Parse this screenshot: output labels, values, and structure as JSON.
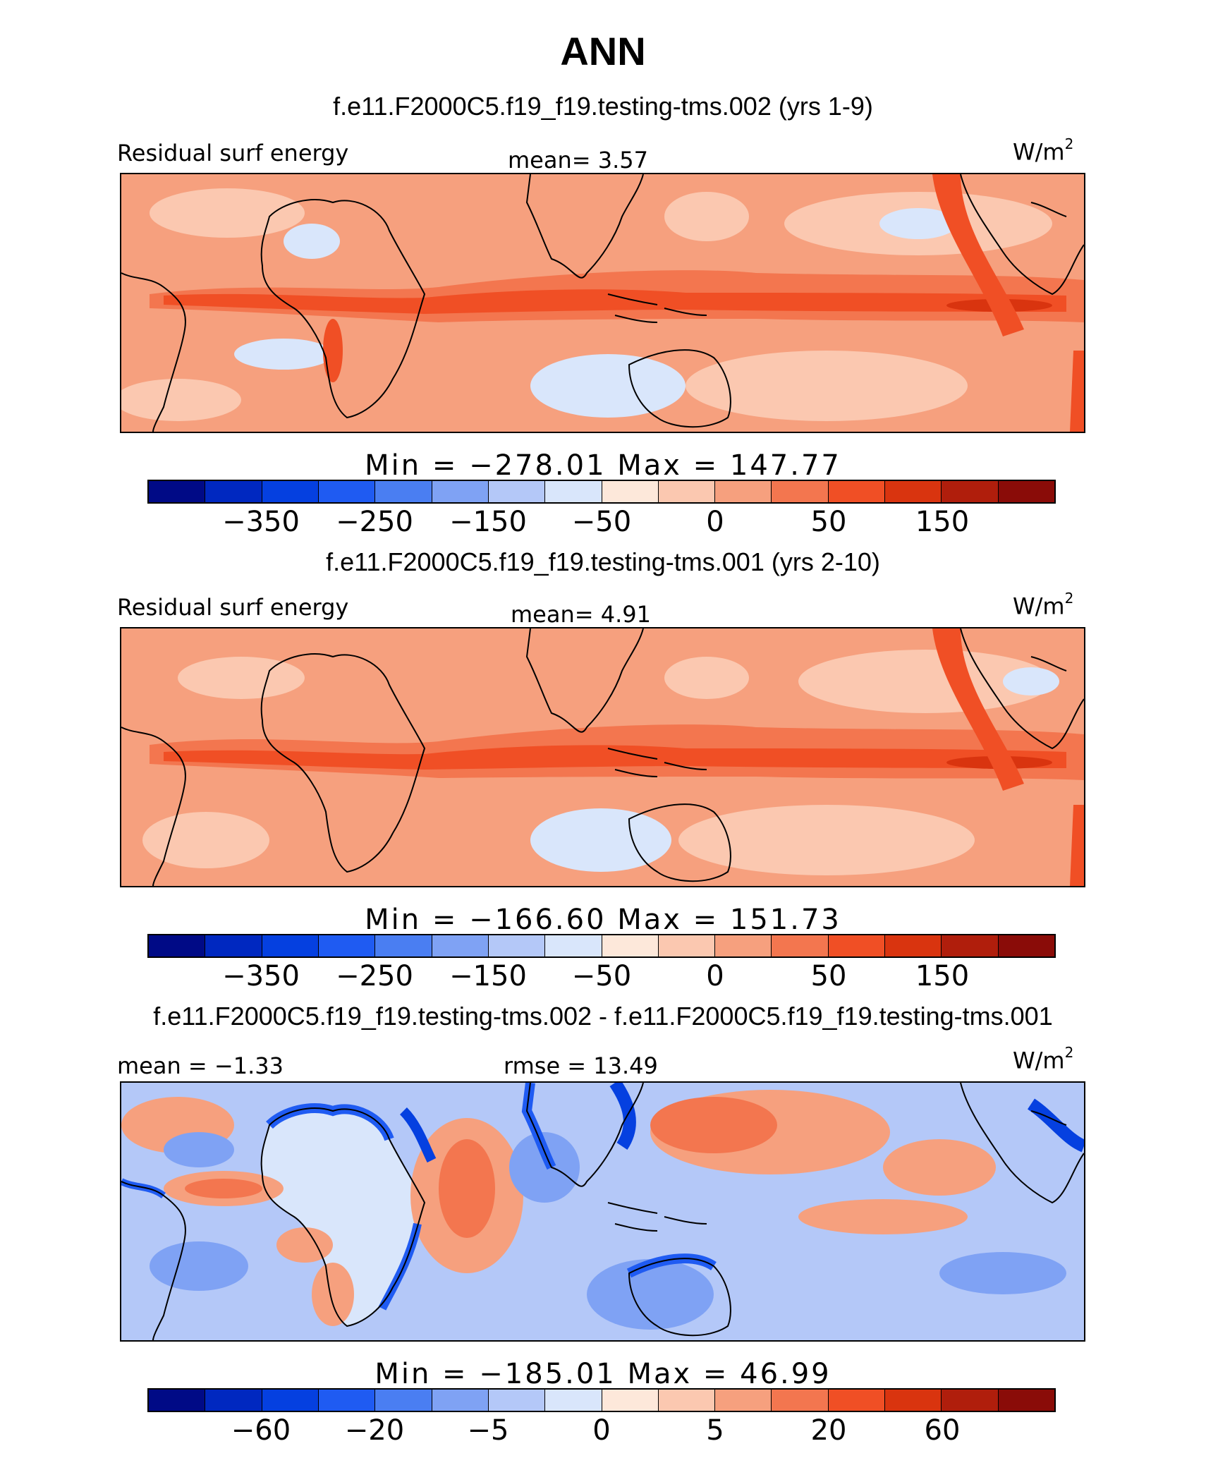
{
  "title": "ANN",
  "colorbar_colors": [
    "#000a86",
    "#0028c0",
    "#0540e0",
    "#1f5bf2",
    "#4a7ef2",
    "#7fa2f4",
    "#b4c8f8",
    "#d9e6fb",
    "#fde8da",
    "#fbc8b0",
    "#f6a07e",
    "#f3764f",
    "#f04f25",
    "#d9340f",
    "#b01e0c",
    "#8a0c08"
  ],
  "coast_color": "#000000",
  "panels": [
    {
      "case_title": "f.e11.F2000C5.f19_f19.testing-tms.002 (yrs 1-9)",
      "left_label": "Residual surf energy",
      "center_label": "mean=   3.57",
      "units": "W/m",
      "units_sup": "2",
      "minmax": "Min = −278.01 Max = 147.77",
      "ticks": [
        "−350",
        "−250",
        "−150",
        "−50",
        "0",
        "50",
        "150"
      ],
      "field": {
        "background": "#f6a07e",
        "band_strong": "#f04f25",
        "band_core": "#d9340f",
        "ocean_light": "#fbc8b0",
        "cool_patch": "#d9e6fb",
        "warm_patch": "#f3764f"
      }
    },
    {
      "case_title": "f.e11.F2000C5.f19_f19.testing-tms.001 (yrs 2-10)",
      "left_label": "Residual surf energy",
      "center_label": "mean=   4.91",
      "units": "W/m",
      "units_sup": "2",
      "minmax": "Min = −166.60 Max = 151.73",
      "ticks": [
        "−350",
        "−250",
        "−150",
        "−50",
        "0",
        "50",
        "150"
      ],
      "field": {
        "background": "#f6a07e",
        "band_strong": "#f04f25",
        "band_core": "#d9340f",
        "ocean_light": "#fbc8b0",
        "cool_patch": "#d9e6fb",
        "warm_patch": "#f3764f"
      }
    },
    {
      "case_title": "f.e11.F2000C5.f19_f19.testing-tms.002 - f.e11.F2000C5.f19_f19.testing-tms.001",
      "left_label": "mean =  −1.33",
      "center_label": "rmse =  13.49",
      "units": "W/m",
      "units_sup": "2",
      "minmax": "Min = −185.01 Max =  46.99",
      "ticks": [
        "−60",
        "−20",
        "−5",
        "0",
        "5",
        "20",
        "60"
      ],
      "field": {
        "background": "#b4c8f8",
        "land": "#d9e6fb",
        "warm": "#f6a07e",
        "warm_strong": "#f3764f",
        "cool": "#7fa2f4",
        "cool_strong": "#1f5bf2",
        "cool_core": "#0540e0"
      }
    }
  ]
}
